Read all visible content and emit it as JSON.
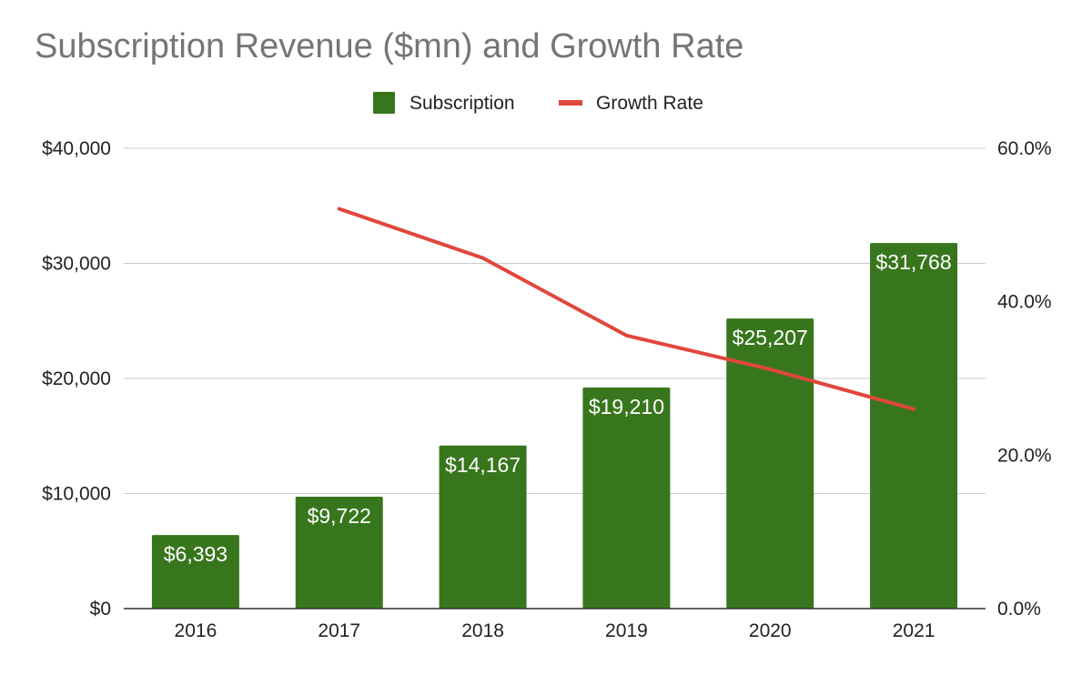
{
  "chart_data": {
    "type": "bar",
    "title": "Subscription Revenue ($mn) and Growth Rate",
    "categories": [
      "2016",
      "2017",
      "2018",
      "2019",
      "2020",
      "2021"
    ],
    "series": [
      {
        "name": "Subscription",
        "type": "bar",
        "axis": "left",
        "color": "#38761d",
        "values": [
          6393,
          9722,
          14167,
          19210,
          25207,
          31768
        ],
        "labels": [
          "$6,393",
          "$9,722",
          "$14,167",
          "$19,210",
          "$25,207",
          "$31,768"
        ]
      },
      {
        "name": "Growth Rate",
        "type": "line",
        "axis": "right",
        "color": "#e0473b",
        "values": [
          null,
          52.1,
          45.7,
          35.6,
          31.2,
          26.0
        ]
      }
    ],
    "y_left": {
      "ylim": [
        0,
        40000
      ],
      "ticks": [
        0,
        10000,
        20000,
        30000,
        40000
      ],
      "tick_labels": [
        "$0",
        "$10,000",
        "$20,000",
        "$30,000",
        "$40,000"
      ]
    },
    "y_right": {
      "ylim": [
        0,
        60
      ],
      "ticks": [
        0,
        20,
        40,
        60
      ],
      "tick_labels": [
        "0.0%",
        "20.0%",
        "40.0%",
        "60.0%"
      ]
    },
    "grid": true,
    "legend": "top-center",
    "xlabel": "",
    "ylabel": ""
  }
}
